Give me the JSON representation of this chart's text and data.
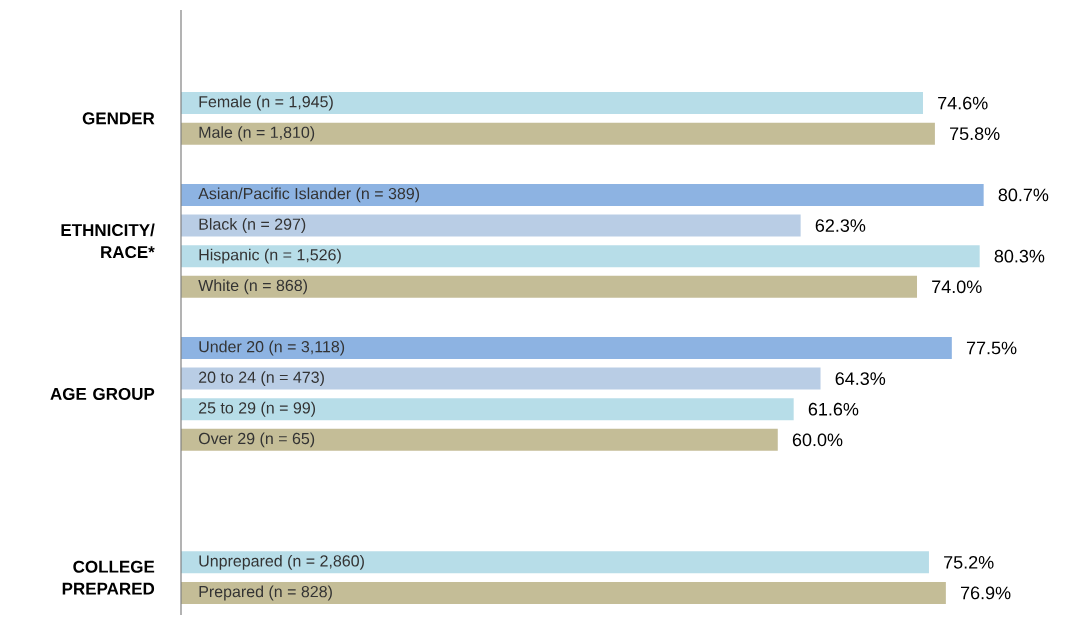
{
  "chart_data": {
    "type": "bar",
    "orientation": "horizontal",
    "categories": [
      "Female (n = 1,945)",
      "Male (n = 1,810)",
      null,
      "Asian/Pacific Islander (n = 389)",
      "Black (n = 297)",
      "Hispanic (n = 1,526)",
      "White (n = 868)",
      null,
      "Under 20 (n = 3,118)",
      "20 to 24 (n = 473)",
      "25 to 29 (n = 99)",
      "Over 29 (n = 65)",
      null,
      null,
      null,
      "Unprepared (n = 2,860)",
      "Prepared (n = 828)"
    ],
    "values": [
      74.6,
      75.8,
      null,
      80.7,
      62.3,
      80.3,
      74.0,
      null,
      77.5,
      64.3,
      61.6,
      60.0,
      null,
      null,
      null,
      75.2,
      76.9
    ],
    "value_labels": [
      "74.6%",
      "75.8%",
      null,
      "80.7%",
      "62.3%",
      "80.3%",
      "74.0%",
      null,
      "77.5%",
      "64.3%",
      "61.6%",
      "60.0%",
      null,
      null,
      null,
      "75.2%",
      "76.9%"
    ],
    "colors": [
      "#b7dde8",
      "#c4bd97",
      null,
      "#8db3e2",
      "#b9cde5",
      "#b7dde8",
      "#c4bd97",
      null,
      "#8db3e2",
      "#b9cde5",
      "#b7dde8",
      "#c4bd97",
      null,
      null,
      null,
      "#b7dde8",
      "#c4bd97"
    ],
    "annotations": [
      "GENDER",
      "ETHNICITY/ RACE*",
      "AGE GROUP",
      "COLLEGE PREPARED"
    ]
  }
}
